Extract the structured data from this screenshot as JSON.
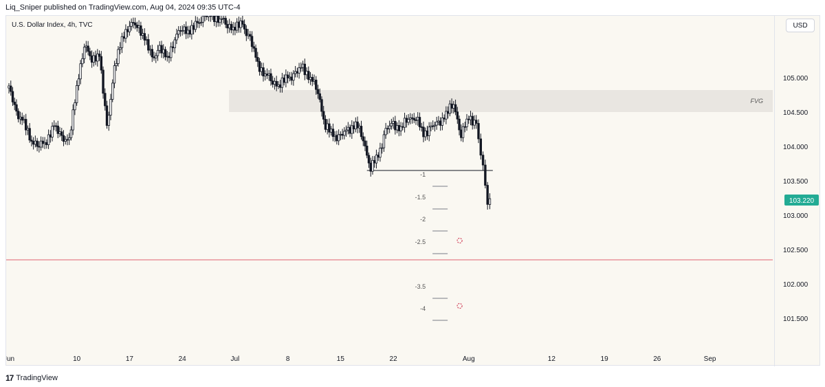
{
  "header": {
    "publish_text": "Liq_Sniper published on TradingView.com, Aug 04, 2024 09:35 UTC-4"
  },
  "chart_header": {
    "symbol_title": "U.S. Dollar Index, 4h, TVC",
    "currency_button": "USD"
  },
  "footer": {
    "logo_mark": "17",
    "brand": "TradingView"
  },
  "colors": {
    "background": "#faf8f2",
    "candle": "#131722",
    "fvg_zone": "#e9e6e1",
    "red_line": "#e06070",
    "last_price": "#22ab94",
    "dots": "#d0405a"
  },
  "chart_data": {
    "type": "candlestick",
    "title": "U.S. Dollar Index, 4h, TVC",
    "timeframe": "4h",
    "x_ticks": [
      "Jun",
      "10",
      "17",
      "24",
      "Jul",
      "8",
      "15",
      "22",
      "Aug",
      "12",
      "19",
      "26",
      "Sep"
    ],
    "x_tick_days": [
      0,
      9,
      16,
      23,
      30,
      37,
      44,
      51,
      61,
      72,
      79,
      86,
      93
    ],
    "y_ticks": [
      "105.000",
      "104.500",
      "104.000",
      "103.500",
      "103.000",
      "102.500",
      "102.000",
      "101.500"
    ],
    "y_tick_values": [
      105.0,
      104.5,
      104.0,
      103.5,
      103.0,
      102.5,
      102.0,
      101.5
    ],
    "ylim": [
      101.2,
      105.9
    ],
    "last_price": {
      "value": 103.22,
      "label": "103.220"
    },
    "fvg_zone": {
      "label": "FVG",
      "top": 104.82,
      "bottom": 104.5,
      "start_day": 29.2
    },
    "swing_low_line": {
      "value": 103.65,
      "start_day": 47.5,
      "end_day": 64.2
    },
    "red_line": {
      "value": 102.35
    },
    "fib_levels": [
      {
        "label": "-1",
        "value": 103.5
      },
      {
        "label": "-1.5",
        "value": 103.17
      },
      {
        "label": "-2",
        "value": 102.85
      },
      {
        "label": "-2.5",
        "value": 102.52
      },
      {
        "label": "-3.5",
        "value": 101.87
      },
      {
        "label": "-4",
        "value": 101.55
      }
    ],
    "target_markers": [
      {
        "day": 59.8,
        "value": 102.63
      },
      {
        "day": 59.8,
        "value": 101.68
      }
    ],
    "series": [
      {
        "values": [
          [
            0.0,
            104.85
          ],
          [
            1.0,
            104.5
          ],
          [
            2.0,
            104.32
          ],
          [
            3.0,
            104.1
          ],
          [
            4.0,
            104.0
          ],
          [
            5.0,
            104.1
          ],
          [
            6.0,
            104.28
          ],
          [
            7.0,
            104.15
          ],
          [
            8.0,
            104.05
          ],
          [
            9.0,
            104.9
          ],
          [
            10.0,
            105.45
          ],
          [
            11.0,
            105.3
          ],
          [
            12.0,
            105.3
          ],
          [
            13.0,
            104.3
          ],
          [
            14.0,
            105.1
          ],
          [
            15.0,
            105.6
          ],
          [
            16.0,
            105.75
          ],
          [
            17.0,
            105.8
          ],
          [
            18.0,
            105.55
          ],
          [
            19.0,
            105.3
          ],
          [
            20.0,
            105.4
          ],
          [
            21.0,
            105.3
          ],
          [
            22.0,
            105.55
          ],
          [
            23.0,
            105.75
          ],
          [
            24.0,
            105.65
          ],
          [
            25.0,
            105.8
          ],
          [
            26.0,
            105.9
          ],
          [
            27.0,
            105.9
          ],
          [
            28.0,
            105.85
          ],
          [
            29.0,
            105.78
          ],
          [
            30.0,
            105.72
          ],
          [
            31.0,
            105.78
          ],
          [
            32.0,
            105.55
          ],
          [
            33.0,
            105.2
          ],
          [
            34.0,
            105.05
          ],
          [
            35.0,
            104.95
          ],
          [
            36.0,
            104.9
          ],
          [
            37.0,
            105.0
          ],
          [
            38.0,
            105.05
          ],
          [
            39.0,
            105.15
          ],
          [
            40.0,
            105.0
          ],
          [
            41.0,
            104.8
          ],
          [
            42.0,
            104.3
          ],
          [
            43.0,
            104.15
          ],
          [
            44.0,
            104.15
          ],
          [
            45.0,
            104.22
          ],
          [
            46.0,
            104.35
          ],
          [
            47.0,
            104.1
          ],
          [
            48.0,
            103.7
          ],
          [
            49.0,
            103.85
          ],
          [
            50.0,
            104.25
          ],
          [
            51.0,
            104.3
          ],
          [
            52.0,
            104.28
          ],
          [
            53.0,
            104.4
          ],
          [
            54.0,
            104.45
          ],
          [
            55.0,
            104.15
          ],
          [
            56.0,
            104.3
          ],
          [
            57.0,
            104.3
          ],
          [
            58.0,
            104.5
          ],
          [
            59.0,
            104.6
          ],
          [
            60.0,
            104.2
          ],
          [
            61.0,
            104.4
          ],
          [
            62.0,
            104.35
          ],
          [
            62.6,
            103.9
          ],
          [
            63.2,
            103.4
          ],
          [
            63.5,
            103.22
          ]
        ]
      }
    ]
  }
}
